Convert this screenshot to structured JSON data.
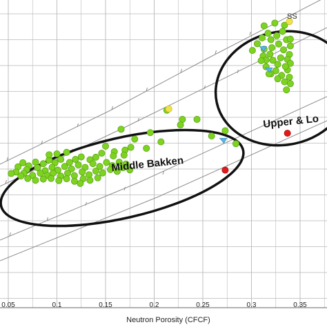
{
  "chart_data": {
    "type": "scatter",
    "title": "",
    "xlabel": "Neutron Porosity (CFCF)",
    "ylabel": "",
    "xlim": [
      0.048,
      0.34
    ],
    "ylim": [
      0,
      1
    ],
    "grid": true,
    "x_ticks": [
      "0.05",
      "0.1",
      "0.15",
      "0.2",
      "0.25",
      "0.3",
      "0.35"
    ],
    "x_tick_values": [
      0.05,
      0.1,
      0.15,
      0.2,
      0.25,
      0.3,
      0.35
    ],
    "annotations": {
      "ss_label": "SS",
      "middle_bakken": "Middle Bakken",
      "upper_lower": "Upper & Lo"
    },
    "colors": {
      "green": "#7ed321",
      "green_edge": "#5aa416",
      "red": "#e01b1b",
      "yellow": "#f2e24a",
      "blue": "#58b6e6",
      "grid": "#b8b8b8",
      "line": "#8c8c8c",
      "ellipse": "#111111"
    },
    "series": [
      {
        "color": "green",
        "points": [
          [
            0.213,
            0.642
          ],
          [
            0.229,
            0.612
          ],
          [
            0.244,
            0.612
          ],
          [
            0.227,
            0.594
          ],
          [
            0.166,
            0.58
          ],
          [
            0.196,
            0.569
          ],
          [
            0.18,
            0.548
          ],
          [
            0.259,
            0.558
          ],
          [
            0.273,
            0.575
          ],
          [
            0.284,
            0.533
          ],
          [
            0.192,
            0.518
          ],
          [
            0.17,
            0.512
          ],
          [
            0.159,
            0.507
          ],
          [
            0.169,
            0.496
          ],
          [
            0.158,
            0.493
          ],
          [
            0.146,
            0.502
          ],
          [
            0.14,
            0.489
          ],
          [
            0.134,
            0.481
          ],
          [
            0.125,
            0.49
          ],
          [
            0.119,
            0.482
          ],
          [
            0.113,
            0.472
          ],
          [
            0.104,
            0.482
          ],
          [
            0.098,
            0.471
          ],
          [
            0.092,
            0.48
          ],
          [
            0.086,
            0.468
          ],
          [
            0.078,
            0.473
          ],
          [
            0.071,
            0.461
          ],
          [
            0.065,
            0.471
          ],
          [
            0.06,
            0.458
          ],
          [
            0.069,
            0.449
          ],
          [
            0.08,
            0.455
          ],
          [
            0.088,
            0.445
          ],
          [
            0.095,
            0.456
          ],
          [
            0.101,
            0.447
          ],
          [
            0.108,
            0.459
          ],
          [
            0.115,
            0.451
          ],
          [
            0.122,
            0.464
          ],
          [
            0.129,
            0.456
          ],
          [
            0.137,
            0.468
          ],
          [
            0.144,
            0.459
          ],
          [
            0.151,
            0.472
          ],
          [
            0.157,
            0.462
          ],
          [
            0.164,
            0.473
          ],
          [
            0.171,
            0.467
          ],
          [
            0.083,
            0.437
          ],
          [
            0.09,
            0.43
          ],
          [
            0.096,
            0.437
          ],
          [
            0.104,
            0.428
          ],
          [
            0.111,
            0.437
          ],
          [
            0.118,
            0.429
          ],
          [
            0.126,
            0.441
          ],
          [
            0.133,
            0.432
          ],
          [
            0.14,
            0.444
          ],
          [
            0.147,
            0.438
          ],
          [
            0.075,
            0.43
          ],
          [
            0.066,
            0.437
          ],
          [
            0.058,
            0.441
          ],
          [
            0.053,
            0.436
          ],
          [
            0.086,
            0.418
          ],
          [
            0.094,
            0.42
          ],
          [
            0.102,
            0.413
          ],
          [
            0.11,
            0.419
          ],
          [
            0.118,
            0.411
          ],
          [
            0.127,
            0.419
          ],
          [
            0.134,
            0.414
          ],
          [
            0.07,
            0.42
          ],
          [
            0.078,
            0.414
          ],
          [
            0.063,
            0.428
          ],
          [
            0.1,
            0.5
          ],
          [
            0.092,
            0.497
          ],
          [
            0.11,
            0.505
          ],
          [
            0.15,
            0.525
          ],
          [
            0.176,
            0.521
          ],
          [
            0.207,
            0.539
          ],
          [
            0.155,
            0.449
          ],
          [
            0.162,
            0.443
          ],
          [
            0.168,
            0.455
          ],
          [
            0.175,
            0.448
          ],
          [
            0.142,
            0.422
          ],
          [
            0.124,
            0.404
          ],
          [
            0.306,
            0.858
          ],
          [
            0.313,
            0.84
          ],
          [
            0.319,
            0.824
          ],
          [
            0.312,
            0.818
          ],
          [
            0.322,
            0.804
          ],
          [
            0.327,
            0.791
          ],
          [
            0.333,
            0.838
          ],
          [
            0.339,
            0.823
          ],
          [
            0.337,
            0.807
          ],
          [
            0.34,
            0.794
          ],
          [
            0.32,
            0.871
          ],
          [
            0.326,
            0.884
          ],
          [
            0.332,
            0.898
          ],
          [
            0.317,
            0.892
          ],
          [
            0.311,
            0.877
          ],
          [
            0.336,
            0.871
          ],
          [
            0.328,
            0.857
          ],
          [
            0.321,
            0.845
          ],
          [
            0.315,
            0.805
          ],
          [
            0.325,
            0.77
          ],
          [
            0.331,
            0.755
          ],
          [
            0.337,
            0.773
          ],
          [
            0.339,
            0.749
          ],
          [
            0.334,
            0.734
          ],
          [
            0.327,
            0.744
          ],
          [
            0.32,
            0.76
          ],
          [
            0.315,
            0.783
          ],
          [
            0.318,
            0.76
          ],
          [
            0.334,
            0.918
          ],
          [
            0.324,
            0.925
          ],
          [
            0.313,
            0.916
          ],
          [
            0.34,
            0.851
          ],
          [
            0.335,
            0.784
          ],
          [
            0.33,
            0.812
          ],
          [
            0.34,
            0.728
          ],
          [
            0.336,
            0.708
          ],
          [
            0.301,
            0.836
          ],
          [
            0.34,
            0.873
          ],
          [
            0.31,
            0.803
          ]
        ]
      },
      {
        "color": "red",
        "points": [
          [
            0.273,
            0.447
          ],
          [
            0.337,
            0.567
          ]
        ]
      },
      {
        "color": "yellow",
        "points": [
          [
            0.215,
            0.646
          ],
          [
            0.339,
            0.93
          ]
        ]
      },
      {
        "color": "blue",
        "points": [
          [
            0.271,
            0.544
          ],
          [
            0.312,
            0.842
          ],
          [
            0.318,
            0.773
          ]
        ]
      }
    ]
  }
}
